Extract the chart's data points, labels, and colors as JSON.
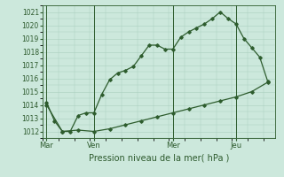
{
  "title": "",
  "xlabel": "Pression niveau de la mer( hPa )",
  "background_color": "#cce8dc",
  "plot_bg_color": "#cce8dc",
  "grid_color": "#aacfbe",
  "line_color": "#2d5c2d",
  "ylim": [
    1011.5,
    1021.5
  ],
  "yticks": [
    1012,
    1013,
    1014,
    1015,
    1016,
    1017,
    1018,
    1019,
    1020,
    1021
  ],
  "day_labels": [
    "Mar",
    "Ven",
    "Mer",
    "Jeu"
  ],
  "day_positions": [
    0,
    24,
    64,
    96
  ],
  "vline_positions": [
    0,
    24,
    64,
    96
  ],
  "xlim": [
    -2,
    116
  ],
  "series1_x": [
    0,
    4,
    8,
    12,
    16,
    20,
    24,
    28,
    32,
    36,
    40,
    44,
    48,
    52,
    56,
    60,
    64,
    68,
    72,
    76,
    80,
    84,
    88,
    92,
    96,
    100,
    104,
    108,
    112
  ],
  "series1_y": [
    1014.2,
    1012.8,
    1012.0,
    1012.0,
    1013.2,
    1013.4,
    1013.4,
    1014.8,
    1015.9,
    1016.4,
    1016.6,
    1016.9,
    1017.7,
    1018.5,
    1018.5,
    1018.2,
    1018.2,
    1019.1,
    1019.5,
    1019.8,
    1020.1,
    1020.5,
    1021.0,
    1020.5,
    1020.1,
    1019.0,
    1018.3,
    1017.6,
    1015.8
  ],
  "series2_x": [
    0,
    8,
    16,
    24,
    32,
    40,
    48,
    56,
    64,
    72,
    80,
    88,
    96,
    104,
    112
  ],
  "series2_y": [
    1014.0,
    1012.0,
    1012.1,
    1012.0,
    1012.2,
    1012.5,
    1012.8,
    1013.1,
    1013.4,
    1013.7,
    1014.0,
    1014.3,
    1014.6,
    1015.0,
    1015.7
  ],
  "figsize": [
    3.2,
    2.0
  ],
  "dpi": 100
}
